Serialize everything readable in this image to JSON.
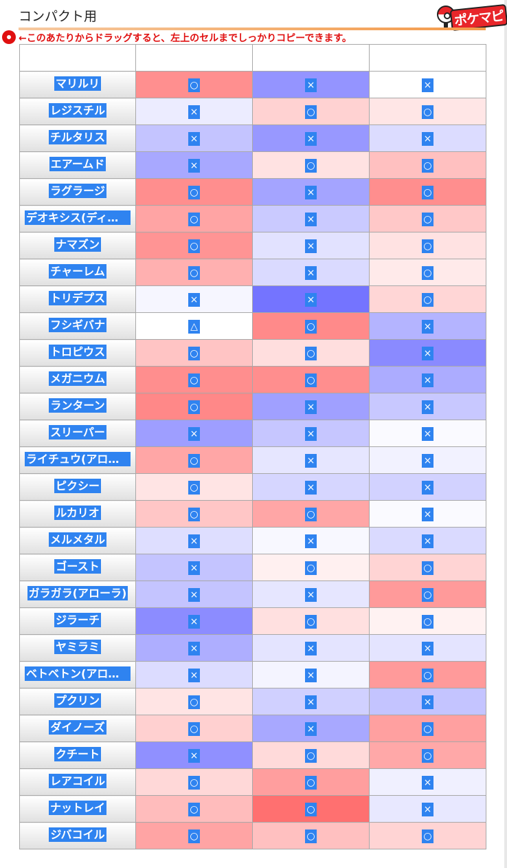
{
  "page": {
    "title": "コンパクト用",
    "logo_text": "ポケマピ",
    "note": "←このあたりからドラッグすると、左上のセルまでしっかりコピーできます。"
  },
  "colors": {
    "red_full": "#ff8a8a",
    "blue_full": "#8c8cff",
    "header_orange": "#f39a4a",
    "note_red": "#e01010",
    "select_blue": "#2f83f0"
  },
  "icons": {
    "logo": "pokeball-pin-icon",
    "note_marker": "red-dot-icon"
  },
  "rows": [
    {
      "name": "マリルリ",
      "cells": [
        {
          "t": "○",
          "c": "#ff8f8f"
        },
        {
          "t": "×",
          "c": "#9494ff"
        },
        {
          "t": "×",
          "c": "#ffffff"
        }
      ]
    },
    {
      "name": "レジスチル",
      "cells": [
        {
          "t": "×",
          "c": "#ececff"
        },
        {
          "t": "○",
          "c": "#ffd2d2"
        },
        {
          "t": "○",
          "c": "#ffe6e6"
        }
      ]
    },
    {
      "name": "チルタリス",
      "cells": [
        {
          "t": "×",
          "c": "#c4c4ff"
        },
        {
          "t": "×",
          "c": "#9898ff"
        },
        {
          "t": "×",
          "c": "#dcdcff"
        }
      ]
    },
    {
      "name": "エアームド",
      "cells": [
        {
          "t": "×",
          "c": "#a8a8ff"
        },
        {
          "t": "○",
          "c": "#ffe2e2"
        },
        {
          "t": "○",
          "c": "#ffc0c0"
        }
      ]
    },
    {
      "name": "ラグラージ",
      "cells": [
        {
          "t": "○",
          "c": "#ff8e8e"
        },
        {
          "t": "×",
          "c": "#a4a4ff"
        },
        {
          "t": "○",
          "c": "#ff8e8e"
        }
      ]
    },
    {
      "name": "デオキシス(ディフェンスフォルム)",
      "cells": [
        {
          "t": "○",
          "c": "#ffa4a4"
        },
        {
          "t": "×",
          "c": "#cacaff"
        },
        {
          "t": "○",
          "c": "#ffc8c8"
        }
      ]
    },
    {
      "name": "ナマズン",
      "cells": [
        {
          "t": "○",
          "c": "#ff9494"
        },
        {
          "t": "×",
          "c": "#e2e2ff"
        },
        {
          "t": "○",
          "c": "#ffe2e2"
        }
      ]
    },
    {
      "name": "チャーレム",
      "cells": [
        {
          "t": "○",
          "c": "#ffb0b0"
        },
        {
          "t": "×",
          "c": "#dadaff"
        },
        {
          "t": "○",
          "c": "#ffeaea"
        }
      ]
    },
    {
      "name": "トリデプス",
      "cells": [
        {
          "t": "×",
          "c": "#f6f6ff"
        },
        {
          "t": "×",
          "c": "#7474ff"
        },
        {
          "t": "○",
          "c": "#ffd6d6"
        }
      ]
    },
    {
      "name": "フシギバナ",
      "cells": [
        {
          "t": "△",
          "c": "#ffffff"
        },
        {
          "t": "○",
          "c": "#ff8a8a"
        },
        {
          "t": "×",
          "c": "#b4b4ff"
        }
      ]
    },
    {
      "name": "トロピウス",
      "cells": [
        {
          "t": "○",
          "c": "#ffc4c4"
        },
        {
          "t": "○",
          "c": "#ffdede"
        },
        {
          "t": "×",
          "c": "#8a8aff"
        }
      ]
    },
    {
      "name": "メガニウム",
      "cells": [
        {
          "t": "○",
          "c": "#ff8e8e"
        },
        {
          "t": "○",
          "c": "#ff8e8e"
        },
        {
          "t": "×",
          "c": "#acacff"
        }
      ]
    },
    {
      "name": "ランターン",
      "cells": [
        {
          "t": "○",
          "c": "#ff8888"
        },
        {
          "t": "×",
          "c": "#a0a0ff"
        },
        {
          "t": "×",
          "c": "#c8c8ff"
        }
      ]
    },
    {
      "name": "スリーパー",
      "cells": [
        {
          "t": "×",
          "c": "#9e9eff"
        },
        {
          "t": "×",
          "c": "#c6c6ff"
        },
        {
          "t": "×",
          "c": "#fafaff"
        }
      ]
    },
    {
      "name": "ライチュウ(アローラのすがた)",
      "cells": [
        {
          "t": "○",
          "c": "#ffa6a6"
        },
        {
          "t": "×",
          "c": "#e6e6ff"
        },
        {
          "t": "×",
          "c": "#f2f2ff"
        }
      ]
    },
    {
      "name": "ピクシー",
      "cells": [
        {
          "t": "○",
          "c": "#ffe4e4"
        },
        {
          "t": "×",
          "c": "#d6d6ff"
        },
        {
          "t": "×",
          "c": "#d2d2ff"
        }
      ]
    },
    {
      "name": "ルカリオ",
      "cells": [
        {
          "t": "○",
          "c": "#ffc6c6"
        },
        {
          "t": "○",
          "c": "#ffa6a6"
        },
        {
          "t": "×",
          "c": "#fafaff"
        }
      ]
    },
    {
      "name": "メルメタル",
      "cells": [
        {
          "t": "×",
          "c": "#dedeff"
        },
        {
          "t": "×",
          "c": "#f8f8ff"
        },
        {
          "t": "×",
          "c": "#dadaff"
        }
      ]
    },
    {
      "name": "ゴースト",
      "cells": [
        {
          "t": "×",
          "c": "#c4c4ff"
        },
        {
          "t": "○",
          "c": "#fff0f0"
        },
        {
          "t": "○",
          "c": "#ffd4d4"
        }
      ]
    },
    {
      "name": "ガラガラ(アローラ)",
      "cells": [
        {
          "t": "×",
          "c": "#c4c4ff"
        },
        {
          "t": "×",
          "c": "#e6e6ff"
        },
        {
          "t": "○",
          "c": "#ff9a9a"
        }
      ]
    },
    {
      "name": "ジラーチ",
      "cells": [
        {
          "t": "×",
          "c": "#8c8cff"
        },
        {
          "t": "○",
          "c": "#ffe0e0"
        },
        {
          "t": "○",
          "c": "#fff2f2"
        }
      ]
    },
    {
      "name": "ヤミラミ",
      "cells": [
        {
          "t": "×",
          "c": "#aeaeff"
        },
        {
          "t": "×",
          "c": "#e4e4ff"
        },
        {
          "t": "×",
          "c": "#e4e4ff"
        }
      ]
    },
    {
      "name": "ベトベトン(アローラのすがた)",
      "cells": [
        {
          "t": "×",
          "c": "#dcdcff"
        },
        {
          "t": "×",
          "c": "#f4f4ff"
        },
        {
          "t": "○",
          "c": "#ff9a9a"
        }
      ]
    },
    {
      "name": "プクリン",
      "cells": [
        {
          "t": "○",
          "c": "#ffe4e4"
        },
        {
          "t": "×",
          "c": "#d0d0ff"
        },
        {
          "t": "×",
          "c": "#c4c4ff"
        }
      ]
    },
    {
      "name": "ダイノーズ",
      "cells": [
        {
          "t": "○",
          "c": "#ffd0d0"
        },
        {
          "t": "×",
          "c": "#a8a8ff"
        },
        {
          "t": "○",
          "c": "#ffa0a0"
        }
      ]
    },
    {
      "name": "クチート",
      "cells": [
        {
          "t": "×",
          "c": "#9090ff"
        },
        {
          "t": "○",
          "c": "#ffdada"
        },
        {
          "t": "○",
          "c": "#ffa8a8"
        }
      ]
    },
    {
      "name": "レアコイル",
      "cells": [
        {
          "t": "○",
          "c": "#ffd8d8"
        },
        {
          "t": "○",
          "c": "#ff9e9e"
        },
        {
          "t": "×",
          "c": "#f0f0ff"
        }
      ]
    },
    {
      "name": "ナットレイ",
      "cells": [
        {
          "t": "○",
          "c": "#ffbcbc"
        },
        {
          "t": "○",
          "c": "#ff7070"
        },
        {
          "t": "×",
          "c": "#e8e8ff"
        }
      ]
    },
    {
      "name": "ジバコイル",
      "cells": [
        {
          "t": "○",
          "c": "#ffa4a4"
        },
        {
          "t": "○",
          "c": "#ffc0c0"
        },
        {
          "t": "○",
          "c": "#ffd4d4"
        }
      ]
    }
  ]
}
